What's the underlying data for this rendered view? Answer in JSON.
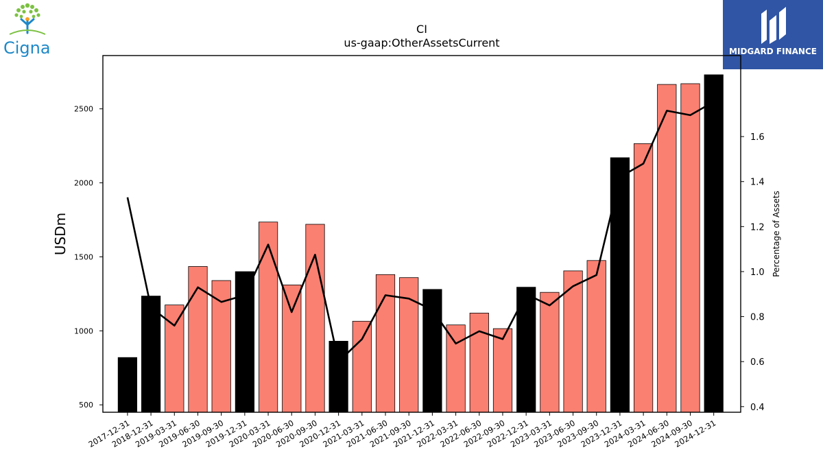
{
  "brand": {
    "left_logo_text": "Cigna",
    "right_logo_text": "MIDGARD FINANCE"
  },
  "chart_data": {
    "type": "bar",
    "title": "CI",
    "subtitle": "us-gaap:OtherAssetsCurrent",
    "ylabel": "USDm",
    "ylabel_right": "Percentage of Assets",
    "ylim": [
      450,
      2860
    ],
    "ylim_right": [
      0.375,
      1.96
    ],
    "yticks": [
      500,
      1000,
      1500,
      2000,
      2500
    ],
    "yticks_right": [
      0.4,
      0.6,
      0.8,
      1.0,
      1.2,
      1.4,
      1.6
    ],
    "categories": [
      "2017-12-31",
      "2018-12-31",
      "2019-03-31",
      "2019-06-30",
      "2019-09-30",
      "2019-12-31",
      "2020-03-31",
      "2020-06-30",
      "2020-09-30",
      "2020-12-31",
      "2021-03-31",
      "2021-06-30",
      "2021-09-30",
      "2021-12-31",
      "2022-03-31",
      "2022-06-30",
      "2022-09-30",
      "2022-12-31",
      "2023-03-31",
      "2023-06-30",
      "2023-09-30",
      "2023-12-31",
      "2024-03-31",
      "2024-06-30",
      "2024-09-30",
      "2024-12-31"
    ],
    "values": [
      820,
      1235,
      1175,
      1435,
      1340,
      1400,
      1735,
      1310,
      1720,
      930,
      1065,
      1380,
      1360,
      1280,
      1040,
      1120,
      1015,
      1295,
      1260,
      1405,
      1475,
      2170,
      2265,
      2665,
      2670,
      2730
    ],
    "annual": [
      true,
      true,
      false,
      false,
      false,
      true,
      false,
      false,
      false,
      true,
      false,
      false,
      false,
      true,
      false,
      false,
      false,
      true,
      false,
      false,
      false,
      true,
      false,
      false,
      false,
      true
    ],
    "pct_of_assets": [
      1.33,
      0.84,
      0.76,
      0.93,
      0.865,
      0.895,
      1.12,
      0.82,
      1.075,
      0.6,
      0.7,
      0.895,
      0.88,
      0.83,
      0.68,
      0.735,
      0.7,
      0.9,
      0.85,
      0.935,
      0.985,
      1.42,
      1.48,
      1.715,
      1.695,
      1.755
    ],
    "colors": {
      "annual": "#000000",
      "quarterly": "#fa8072",
      "line": "#000000"
    }
  }
}
